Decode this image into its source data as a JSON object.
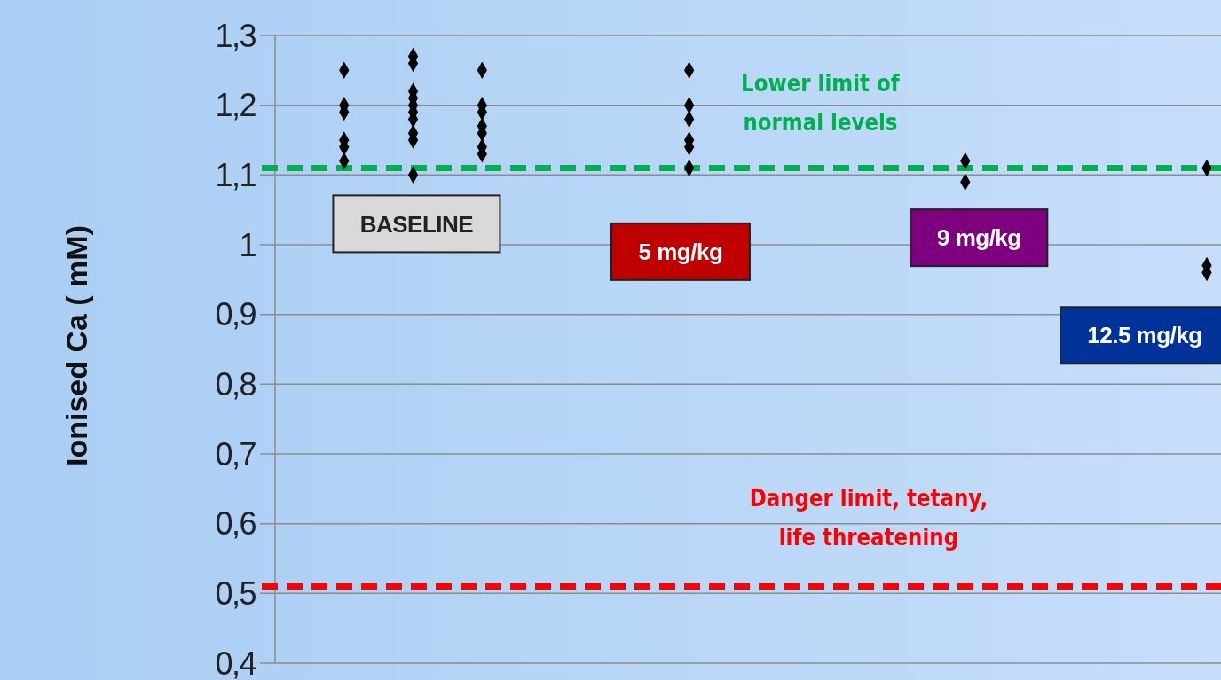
{
  "chart_data": {
    "type": "scatter",
    "ylabel": "Ionised Ca ( mM)",
    "marker": "diamond",
    "grid": "y",
    "tick_labels": "y",
    "categories": [
      null,
      null,
      null,
      null,
      null,
      null,
      null,
      null,
      null,
      null,
      null,
      null,
      null,
      null,
      null,
      null,
      null,
      null,
      null,
      null,
      null,
      null,
      null,
      null,
      null,
      null,
      null,
      null
    ],
    "ylim": [
      0.4,
      1.3
    ],
    "yticks": [
      {
        "value": 0.4,
        "label": "0,4"
      },
      {
        "value": 0.5,
        "label": "0,5"
      },
      {
        "value": 0.6,
        "label": "0,6"
      },
      {
        "value": 0.7,
        "label": "0,7"
      },
      {
        "value": 0.8,
        "label": "0,8"
      },
      {
        "value": 0.9,
        "label": "0,9"
      },
      1,
      {
        "value": 1.1,
        "label": "1,1"
      },
      {
        "value": 1.2,
        "label": "1,2"
      },
      {
        "value": 1.3,
        "label": "1,3"
      }
    ],
    "series": [
      {
        "color": "#000000",
        "values": [
          null,
          null,
          1.25,
          null,
          1.27,
          null,
          1.25,
          null,
          null,
          null,
          null,
          null,
          1.25,
          null,
          null,
          null,
          null,
          null,
          null,
          null,
          1.12,
          null,
          null,
          null,
          null,
          null,
          null,
          1.11
        ]
      },
      {
        "color": "#000000",
        "values": [
          null,
          null,
          1.2,
          null,
          1.26,
          null,
          1.2,
          null,
          null,
          null,
          null,
          null,
          1.2,
          null,
          null,
          null,
          null,
          null,
          null,
          null,
          1.09,
          null,
          null,
          null,
          null,
          null,
          null,
          0.97
        ]
      },
      {
        "color": "#000000",
        "values": [
          null,
          null,
          1.19,
          null,
          1.22,
          null,
          1.19,
          null,
          null,
          null,
          null,
          null,
          1.18,
          null,
          null,
          null,
          null,
          null,
          null,
          null,
          null,
          null,
          null,
          null,
          null,
          null,
          null,
          0.96
        ]
      },
      {
        "color": "#000000",
        "values": [
          null,
          null,
          1.15,
          null,
          1.21,
          null,
          1.17,
          null,
          null,
          null,
          null,
          null,
          1.15,
          null,
          null,
          null,
          null,
          null,
          null,
          null,
          null,
          null,
          null,
          null,
          null,
          null,
          null,
          null
        ]
      },
      {
        "color": "#000000",
        "values": [
          null,
          null,
          1.14,
          null,
          1.2,
          null,
          1.16,
          null,
          null,
          null,
          null,
          null,
          1.14,
          null,
          null,
          null,
          null,
          null,
          null,
          null,
          null,
          null,
          null,
          null,
          null,
          null,
          null,
          null
        ]
      },
      {
        "color": "#000000",
        "values": [
          null,
          null,
          1.12,
          null,
          1.19,
          null,
          1.14,
          null,
          null,
          null,
          null,
          null,
          1.11,
          null,
          null,
          null,
          null,
          null,
          null,
          null,
          null,
          null,
          null,
          null,
          null,
          null,
          null,
          null
        ]
      },
      {
        "color": "#000000",
        "values": [
          null,
          null,
          null,
          null,
          1.18,
          null,
          1.13,
          null,
          null,
          null,
          null,
          null,
          null,
          null,
          null,
          null,
          null,
          null,
          null,
          null,
          null,
          null,
          null,
          null,
          null,
          null,
          null,
          null
        ]
      },
      {
        "color": "#000000",
        "values": [
          null,
          null,
          null,
          null,
          1.16,
          null,
          null,
          null,
          null,
          null,
          null,
          null,
          null,
          null,
          null,
          null,
          null,
          null,
          null,
          null,
          null,
          null,
          null,
          null,
          null,
          null,
          null,
          null
        ]
      },
      {
        "color": "#000000",
        "values": [
          null,
          null,
          null,
          null,
          1.15,
          null,
          null,
          null,
          null,
          null,
          null,
          null,
          null,
          null,
          null,
          null,
          null,
          null,
          null,
          null,
          null,
          null,
          null,
          null,
          null,
          null,
          null,
          null
        ]
      },
      {
        "color": "#000000",
        "values": [
          null,
          null,
          null,
          null,
          1.1,
          null,
          null,
          null,
          null,
          null,
          null,
          null,
          null,
          null,
          null,
          null,
          null,
          null,
          null,
          null,
          null,
          null,
          null,
          null,
          null,
          null,
          null,
          null
        ]
      }
    ],
    "ref_lines": [
      {
        "axis": "y",
        "value": 1.11,
        "label": "Lower limit of normal levels",
        "color": "#00b050",
        "line_style": "dashed"
      },
      {
        "axis": "y",
        "value": 0.51,
        "label": "Danger limit, tetany, life threatening",
        "color": "#ff0000",
        "line_style": "dashed"
      }
    ],
    "annotations": [
      "BASELINE",
      "5 mg/kg",
      "9 mg/kg",
      "12.5 mg/kg"
    ]
  }
}
